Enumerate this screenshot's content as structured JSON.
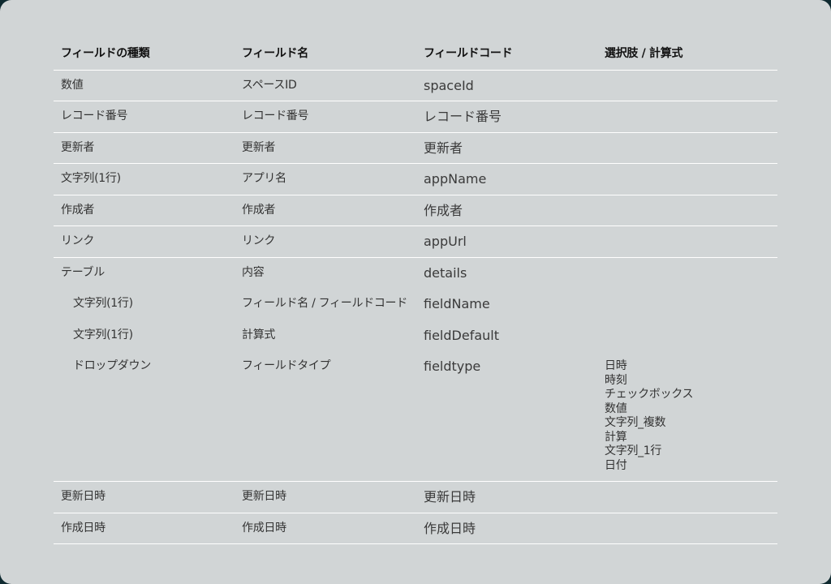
{
  "table": {
    "headers": [
      "フィールドの種類",
      "フィールド名",
      "フィールドコード",
      "選択肢 / 計算式"
    ],
    "rows": [
      {
        "type": "数値",
        "name": "スペースID",
        "code": "spaceId"
      },
      {
        "type": "レコード番号",
        "name": "レコード番号",
        "code": "レコード番号"
      },
      {
        "type": "更新者",
        "name": "更新者",
        "code": "更新者"
      },
      {
        "type": "文字列(1行)",
        "name": "アプリ名",
        "code": "appName"
      },
      {
        "type": "作成者",
        "name": "作成者",
        "code": "作成者"
      },
      {
        "type": "リンク",
        "name": "リンク",
        "code": "appUrl"
      },
      {
        "type": "テーブル",
        "name": "内容",
        "code": "details",
        "children": [
          {
            "type": "文字列(1行)",
            "name": "フィールド名 / フィールドコード",
            "code": "fieldName"
          },
          {
            "type": "文字列(1行)",
            "name": "計算式",
            "code": "fieldDefault"
          },
          {
            "type": "ドロップダウン",
            "name": "フィールドタイプ",
            "code": "fieldtype",
            "options": [
              "日時",
              "時刻",
              "チェックボックス",
              "数値",
              "文字列_複数",
              "計算",
              "文字列_1行",
              "日付"
            ]
          }
        ]
      },
      {
        "type": "更新日時",
        "name": "更新日時",
        "code": "更新日時"
      },
      {
        "type": "作成日時",
        "name": "作成日時",
        "code": "作成日時"
      }
    ]
  }
}
